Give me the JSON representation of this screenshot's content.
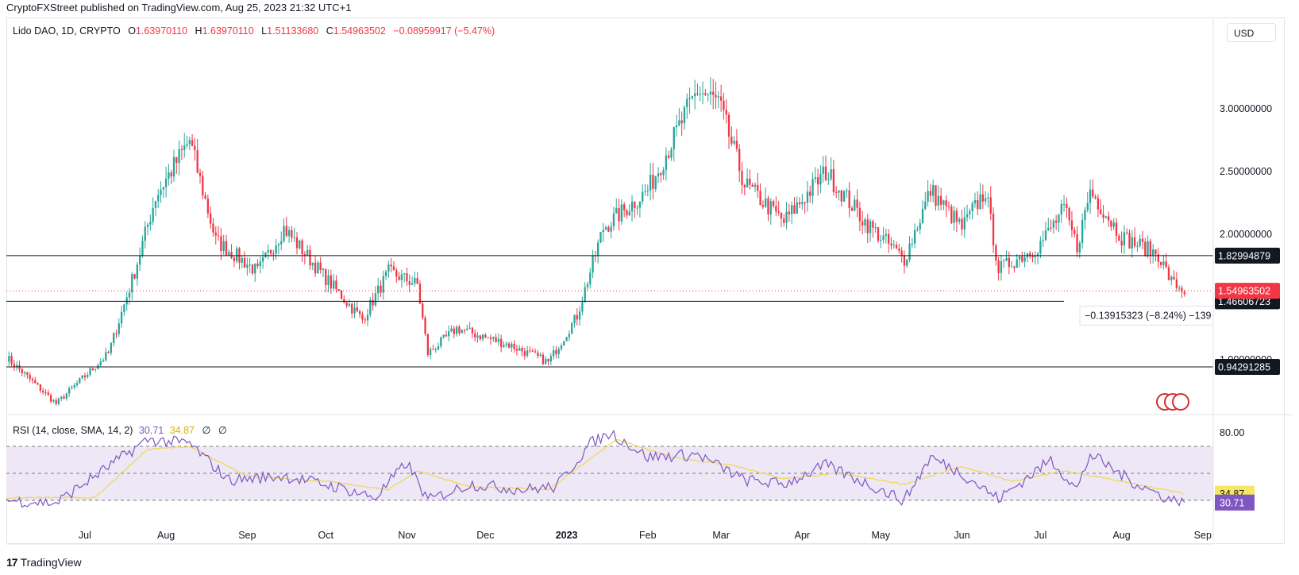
{
  "header": {
    "published": "CryptoFXStreet published on TradingView.com, Aug 25, 2023 21:32 UTC+1"
  },
  "legend": {
    "symbol": "Lido DAO, 1D, CRYPTO",
    "o_label": "O",
    "o": "1.63970110",
    "h_label": "H",
    "h": "1.63970110",
    "l_label": "L",
    "l": "1.51133680",
    "c_label": "C",
    "c": "1.54963502",
    "change": "−0.08959917 (−5.47%)"
  },
  "currency": "USD",
  "rsi_legend": {
    "label": "RSI (14, close, SMA, 14, 2)",
    "rsi": "30.71",
    "sma": "34.87",
    "z1": "∅",
    "z2": "∅"
  },
  "measure_tooltip": "−0.13915323 (−8.24%) −139",
  "footer": {
    "brand": "TradingView"
  },
  "colors": {
    "up": "#26a69a",
    "down": "#f23645",
    "rsi": "#7e57c2",
    "rsi_sma": "#f5e663",
    "band": "#ede7f6"
  },
  "chart_data": [
    {
      "type": "candlestick",
      "symbol": "Lido DAO",
      "interval": "1D",
      "x_ticks": [
        "Jul",
        "Aug",
        "Sep",
        "Oct",
        "Nov",
        "Dec",
        "2023",
        "Feb",
        "Mar",
        "Apr",
        "May",
        "Jun",
        "Jul",
        "Aug",
        "Sep"
      ],
      "y_ticks": [
        "3.00000000",
        "2.50000000",
        "2.00000000",
        "1.00000000"
      ],
      "horizontal_levels": [
        {
          "label": "1.82994879",
          "value": 1.82994879
        },
        {
          "label": "1.46606723",
          "value": 1.46606723
        },
        {
          "label": "0.94291285",
          "value": 0.94291285
        }
      ],
      "last_price": {
        "label": "1.54963502",
        "value": 1.54963502
      },
      "price_path": [
        {
          "date": "2022-06-01",
          "value": 1.02
        },
        {
          "date": "2022-06-20",
          "value": 0.65
        },
        {
          "date": "2022-07-10",
          "value": 1.05
        },
        {
          "date": "2022-07-20",
          "value": 1.7
        },
        {
          "date": "2022-07-28",
          "value": 2.3
        },
        {
          "date": "2022-08-10",
          "value": 2.75
        },
        {
          "date": "2022-08-20",
          "value": 1.95
        },
        {
          "date": "2022-09-05",
          "value": 1.7
        },
        {
          "date": "2022-09-15",
          "value": 2.05
        },
        {
          "date": "2022-10-01",
          "value": 1.65
        },
        {
          "date": "2022-10-15",
          "value": 1.32
        },
        {
          "date": "2022-10-25",
          "value": 1.7
        },
        {
          "date": "2022-11-05",
          "value": 1.6
        },
        {
          "date": "2022-11-09",
          "value": 1.05
        },
        {
          "date": "2022-11-20",
          "value": 1.25
        },
        {
          "date": "2022-12-10",
          "value": 1.12
        },
        {
          "date": "2022-12-25",
          "value": 0.98
        },
        {
          "date": "2023-01-05",
          "value": 1.35
        },
        {
          "date": "2023-01-15",
          "value": 2.05
        },
        {
          "date": "2023-02-01",
          "value": 2.35
        },
        {
          "date": "2023-02-20",
          "value": 3.15
        },
        {
          "date": "2023-02-28",
          "value": 3.05
        },
        {
          "date": "2023-03-10",
          "value": 2.4
        },
        {
          "date": "2023-03-25",
          "value": 2.1
        },
        {
          "date": "2023-04-10",
          "value": 2.5
        },
        {
          "date": "2023-04-25",
          "value": 2.1
        },
        {
          "date": "2023-05-10",
          "value": 1.8
        },
        {
          "date": "2023-05-20",
          "value": 2.35
        },
        {
          "date": "2023-06-01",
          "value": 2.05
        },
        {
          "date": "2023-06-10",
          "value": 2.35
        },
        {
          "date": "2023-06-15",
          "value": 1.72
        },
        {
          "date": "2023-06-30",
          "value": 1.9
        },
        {
          "date": "2023-07-10",
          "value": 2.2
        },
        {
          "date": "2023-07-15",
          "value": 1.9
        },
        {
          "date": "2023-07-20",
          "value": 2.35
        },
        {
          "date": "2023-08-01",
          "value": 1.98
        },
        {
          "date": "2023-08-15",
          "value": 1.84
        },
        {
          "date": "2023-08-20",
          "value": 1.62
        },
        {
          "date": "2023-08-25",
          "value": 1.55
        }
      ]
    },
    {
      "type": "line",
      "title": "RSI (14, close, SMA, 14, 2)",
      "y_ticks": [
        "80.00"
      ],
      "bands": [
        70,
        50,
        30
      ],
      "series": [
        {
          "name": "RSI",
          "last": 30.71,
          "points": [
            {
              "date": "2022-06-01",
              "value": 30
            },
            {
              "date": "2022-06-20",
              "value": 28
            },
            {
              "date": "2022-07-10",
              "value": 55
            },
            {
              "date": "2022-07-25",
              "value": 75
            },
            {
              "date": "2022-08-10",
              "value": 72
            },
            {
              "date": "2022-08-25",
              "value": 45
            },
            {
              "date": "2022-09-15",
              "value": 48
            },
            {
              "date": "2022-10-05",
              "value": 40
            },
            {
              "date": "2022-10-20",
              "value": 32
            },
            {
              "date": "2022-11-01",
              "value": 58
            },
            {
              "date": "2022-11-09",
              "value": 30
            },
            {
              "date": "2022-11-25",
              "value": 42
            },
            {
              "date": "2022-12-15",
              "value": 38
            },
            {
              "date": "2022-12-28",
              "value": 40
            },
            {
              "date": "2023-01-10",
              "value": 72
            },
            {
              "date": "2023-01-18",
              "value": 80
            },
            {
              "date": "2023-02-01",
              "value": 62
            },
            {
              "date": "2023-02-20",
              "value": 64
            },
            {
              "date": "2023-03-10",
              "value": 45
            },
            {
              "date": "2023-03-25",
              "value": 42
            },
            {
              "date": "2023-04-10",
              "value": 56
            },
            {
              "date": "2023-05-10",
              "value": 30
            },
            {
              "date": "2023-05-20",
              "value": 62
            },
            {
              "date": "2023-06-01",
              "value": 50
            },
            {
              "date": "2023-06-15",
              "value": 31
            },
            {
              "date": "2023-07-05",
              "value": 60
            },
            {
              "date": "2023-07-15",
              "value": 38
            },
            {
              "date": "2023-07-20",
              "value": 64
            },
            {
              "date": "2023-08-05",
              "value": 44
            },
            {
              "date": "2023-08-20",
              "value": 30
            },
            {
              "date": "2023-08-25",
              "value": 30.71
            }
          ]
        },
        {
          "name": "SMA",
          "last": 34.87,
          "points": [
            {
              "date": "2022-06-01",
              "value": 32
            },
            {
              "date": "2022-07-05",
              "value": 32
            },
            {
              "date": "2022-07-25",
              "value": 68
            },
            {
              "date": "2022-08-10",
              "value": 70
            },
            {
              "date": "2022-09-01",
              "value": 48
            },
            {
              "date": "2022-10-01",
              "value": 44
            },
            {
              "date": "2022-10-25",
              "value": 38
            },
            {
              "date": "2022-11-05",
              "value": 52
            },
            {
              "date": "2022-11-25",
              "value": 40
            },
            {
              "date": "2022-12-25",
              "value": 38
            },
            {
              "date": "2023-01-20",
              "value": 75
            },
            {
              "date": "2023-02-10",
              "value": 62
            },
            {
              "date": "2023-03-05",
              "value": 56
            },
            {
              "date": "2023-03-25",
              "value": 46
            },
            {
              "date": "2023-04-15",
              "value": 50
            },
            {
              "date": "2023-05-10",
              "value": 42
            },
            {
              "date": "2023-06-01",
              "value": 55
            },
            {
              "date": "2023-06-20",
              "value": 44
            },
            {
              "date": "2023-07-10",
              "value": 52
            },
            {
              "date": "2023-08-01",
              "value": 44
            },
            {
              "date": "2023-08-25",
              "value": 34.87
            }
          ]
        }
      ]
    }
  ]
}
